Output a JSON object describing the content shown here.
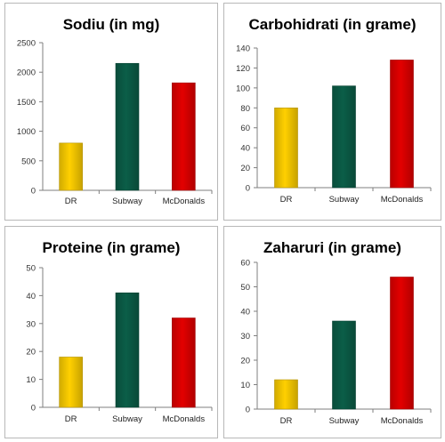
{
  "colors": {
    "DR": "#ffd000",
    "Subway": "#0b5e48",
    "McDonalds": "#e30000"
  },
  "chart_data": [
    {
      "type": "bar",
      "title": "Sodiu (in mg)",
      "categories": [
        "DR",
        "Subway",
        "McDonalds"
      ],
      "values": [
        800,
        2150,
        1820
      ],
      "ylim": [
        0,
        2500
      ],
      "yticks": [
        "0",
        "500",
        "1000",
        "1500",
        "2000",
        "2500"
      ],
      "xlabel": "",
      "ylabel": "",
      "grid": false,
      "legend": "none"
    },
    {
      "type": "bar",
      "title": "Carbohidrati (in grame)",
      "categories": [
        "DR",
        "Subway",
        "McDonalds"
      ],
      "values": [
        80,
        102,
        128
      ],
      "ylim": [
        0,
        140
      ],
      "yticks": [
        "0",
        "20",
        "40",
        "60",
        "80",
        "100",
        "120",
        "140"
      ],
      "xlabel": "",
      "ylabel": "",
      "grid": false,
      "legend": "none"
    },
    {
      "type": "bar",
      "title": "Proteine (in grame)",
      "categories": [
        "DR",
        "Subway",
        "McDonalds"
      ],
      "values": [
        18,
        41,
        32
      ],
      "ylim": [
        0,
        50
      ],
      "yticks": [
        "0",
        "10",
        "20",
        "30",
        "40",
        "50"
      ],
      "xlabel": "",
      "ylabel": "",
      "grid": false,
      "legend": "none"
    },
    {
      "type": "bar",
      "title": "Zaharuri (in grame)",
      "categories": [
        "DR",
        "Subway",
        "McDonalds"
      ],
      "values": [
        12,
        36,
        54
      ],
      "ylim": [
        0,
        60
      ],
      "yticks": [
        "0",
        "10",
        "20",
        "30",
        "40",
        "50",
        "60"
      ],
      "xlabel": "",
      "ylabel": "",
      "grid": false,
      "legend": "none"
    }
  ]
}
